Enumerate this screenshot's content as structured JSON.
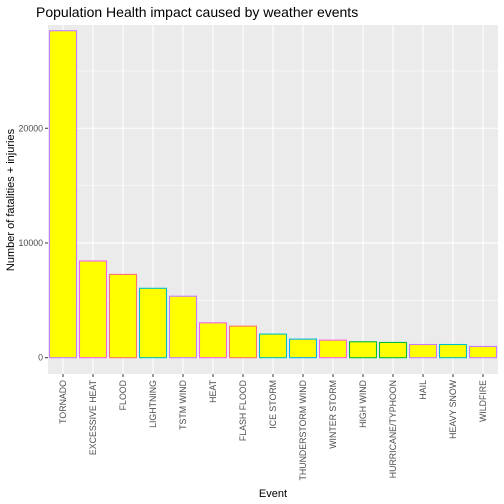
{
  "chart_data": {
    "type": "bar",
    "title": "Population Health impact caused by weather events",
    "xlabel": "Event",
    "ylabel": "Number of fatalities + injuries",
    "categories": [
      "TORNADO",
      "EXCESSIVE HEAT",
      "FLOOD",
      "LIGHTNING",
      "TSTM WIND",
      "HEAT",
      "FLASH FLOOD",
      "ICE STORM",
      "THUNDERSTORM WIND",
      "WINTER STORM",
      "HIGH WIND",
      "HURRICANE/TYPHOON",
      "HAIL",
      "HEAVY SNOW",
      "WILDFIRE"
    ],
    "values": [
      28500,
      8430,
      7260,
      6050,
      5360,
      3040,
      2750,
      2060,
      1620,
      1530,
      1390,
      1330,
      1150,
      1150,
      980
    ],
    "ylim": [
      -1420,
      29000
    ],
    "yticks": [
      0,
      10000,
      20000
    ],
    "ytick_labels": [
      "0",
      "10000",
      "20000"
    ],
    "grid": true,
    "legend": "none",
    "bar_fill": "#ffff00",
    "bar_outlines": [
      "#c77cff",
      "#f564e3",
      "#f8766d",
      "#00bfc4",
      "#c77cff",
      "#f564e3",
      "#f8766d",
      "#00bfc4",
      "#00b0f6",
      "#f564e3",
      "#00ba38",
      "#00ba38",
      "#c77cff",
      "#00bfc4",
      "#c77cff"
    ],
    "panel_color": "#ebebeb",
    "grid_color": "#ffffff"
  }
}
